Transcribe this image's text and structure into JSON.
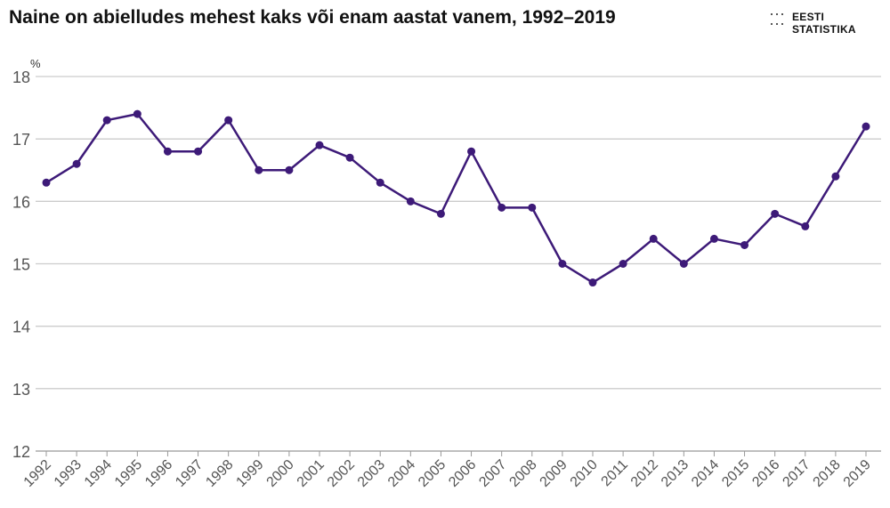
{
  "header": {
    "title": "Naine on abielludes mehest kaks või enam aastat vanem, 1992–2019"
  },
  "logo": {
    "line1": "EESTI",
    "line2": "STATISTIKA"
  },
  "colors": {
    "line": "#3d1a78",
    "grid": "#cccccc",
    "axis_text": "#555555"
  },
  "chart_data": {
    "type": "line",
    "title": "Naine on abielludes mehest kaks või enam aastat vanem, 1992–2019",
    "ylabel": "%",
    "xlabel": "",
    "ylim": [
      12,
      18
    ],
    "yticks": [
      "12",
      "13",
      "14",
      "15",
      "16",
      "17",
      "18"
    ],
    "grid": true,
    "categories": [
      "1992",
      "1993",
      "1994",
      "1995",
      "1996",
      "1997",
      "1998",
      "1999",
      "2000",
      "2001",
      "2002",
      "2003",
      "2004",
      "2005",
      "2006",
      "2007",
      "2008",
      "2009",
      "2010",
      "2011",
      "2012",
      "2013",
      "2014",
      "2015",
      "2016",
      "2017",
      "2018",
      "2019"
    ],
    "series": [
      {
        "name": "%",
        "values": [
          16.3,
          16.6,
          17.3,
          17.4,
          16.8,
          16.8,
          17.3,
          16.5,
          16.5,
          16.9,
          16.7,
          16.3,
          16.0,
          15.8,
          16.8,
          15.9,
          15.9,
          15.0,
          14.7,
          15.0,
          15.4,
          15.0,
          15.4,
          15.3,
          15.8,
          15.6,
          16.4,
          17.2
        ]
      }
    ]
  }
}
